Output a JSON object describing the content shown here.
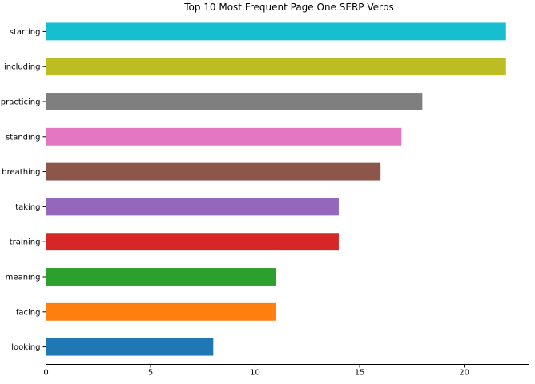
{
  "chart_data": {
    "type": "bar",
    "orientation": "horizontal",
    "title": "Top 10 Most Frequent Page One SERP Verbs",
    "xlabel": "",
    "ylabel": "",
    "categories": [
      "looking",
      "facing",
      "meaning",
      "training",
      "taking",
      "breathing",
      "standing",
      "practicing",
      "including",
      "starting"
    ],
    "values": [
      8,
      11,
      11,
      14,
      14,
      16,
      17,
      18,
      22,
      22
    ],
    "colors": [
      "#1f77b4",
      "#ff7f0e",
      "#2ca02c",
      "#d62728",
      "#9467bd",
      "#8c564b",
      "#e377c2",
      "#7f7f7f",
      "#bcbd22",
      "#17becf"
    ],
    "xlim": [
      0,
      23.1
    ],
    "xticks": [
      0,
      5,
      10,
      15,
      20
    ],
    "grid": false,
    "legend": "none"
  }
}
